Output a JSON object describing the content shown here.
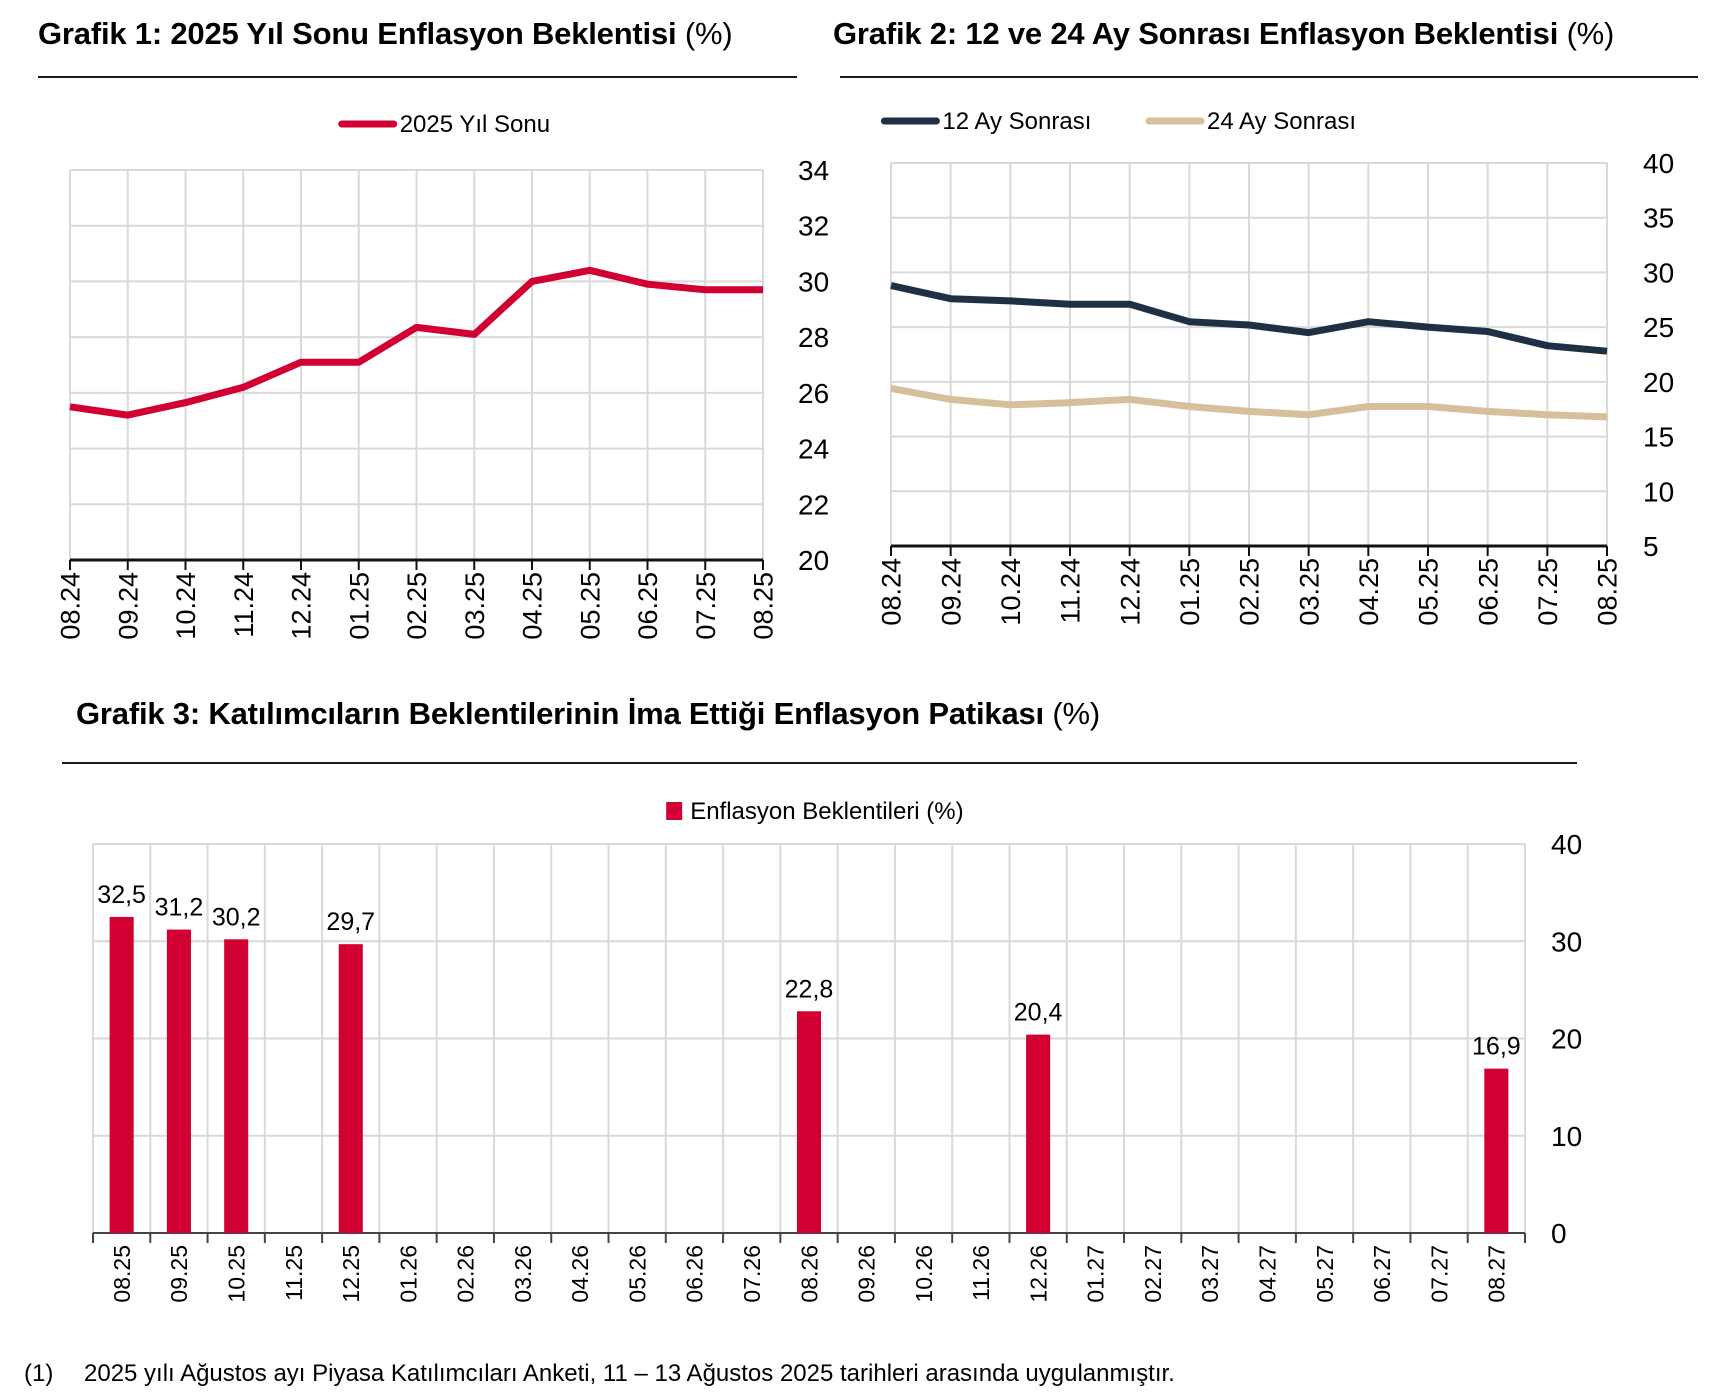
{
  "chart_data": [
    {
      "type": "line",
      "title": "Grafik 1: 2025 Yıl Sonu Enflasyon Beklentisi",
      "title_unit": "(%)",
      "xlabel": "",
      "ylabel": "",
      "categories": [
        "08.24",
        "09.24",
        "10.24",
        "11.24",
        "12.24",
        "01.25",
        "02.25",
        "03.25",
        "04.25",
        "05.25",
        "06.25",
        "07.25",
        "08.25"
      ],
      "series": [
        {
          "name": "2025 Yıl Sonu",
          "color": "#D20032",
          "values": [
            25.5,
            25.2,
            25.65,
            26.2,
            27.1,
            27.1,
            28.35,
            28.1,
            30.0,
            30.4,
            29.9,
            29.7,
            29.7
          ]
        }
      ],
      "ylim": [
        20,
        34
      ],
      "yticks": [
        20,
        22,
        24,
        26,
        28,
        30,
        32,
        34
      ],
      "y_axis_side": "right",
      "grid": true,
      "legend_position": "top-center"
    },
    {
      "type": "line",
      "title": "Grafik 2: 12 ve 24 Ay Sonrası Enflasyon Beklentisi",
      "title_unit": "(%)",
      "xlabel": "",
      "ylabel": "",
      "categories": [
        "08.24",
        "09.24",
        "10.24",
        "11.24",
        "12.24",
        "01.25",
        "02.25",
        "03.25",
        "04.25",
        "05.25",
        "06.25",
        "07.25",
        "08.25"
      ],
      "series": [
        {
          "name": "12 Ay Sonrası",
          "color": "#1F3044",
          "values": [
            28.8,
            27.6,
            27.4,
            27.1,
            27.1,
            25.5,
            25.2,
            24.5,
            25.5,
            25.0,
            24.6,
            23.3,
            22.8
          ]
        },
        {
          "name": "24 Ay Sonrası",
          "color": "#D6BF9B",
          "values": [
            19.4,
            18.4,
            17.9,
            18.1,
            18.4,
            17.75,
            17.3,
            17.0,
            17.75,
            17.75,
            17.3,
            17.0,
            16.8
          ]
        }
      ],
      "ylim": [
        5,
        40
      ],
      "yticks": [
        5,
        10,
        15,
        20,
        25,
        30,
        35,
        40
      ],
      "y_axis_side": "right",
      "grid": true,
      "legend_position": "top-center"
    },
    {
      "type": "bar",
      "title": "Grafik 3: Katılımcıların Beklentilerinin İma Ettiği Enflasyon Patikası",
      "title_unit": "(%)",
      "xlabel": "",
      "ylabel": "",
      "categories": [
        "08.25",
        "09.25",
        "10.25",
        "11.25",
        "12.25",
        "01.26",
        "02.26",
        "03.26",
        "04.26",
        "05.26",
        "06.26",
        "07.26",
        "08.26",
        "09.26",
        "10.26",
        "11.26",
        "12.26",
        "01.27",
        "02.27",
        "03.27",
        "04.27",
        "05.27",
        "06.27",
        "07.27",
        "08.27"
      ],
      "series": [
        {
          "name": "Enflasyon Beklentileri (%)",
          "color": "#D20032",
          "values": [
            32.5,
            31.2,
            30.2,
            null,
            29.7,
            null,
            null,
            null,
            null,
            null,
            null,
            null,
            22.8,
            null,
            null,
            null,
            20.4,
            null,
            null,
            null,
            null,
            null,
            null,
            null,
            16.9
          ]
        }
      ],
      "data_labels": [
        "32,5",
        "31,2",
        "30,2",
        "",
        "29,7",
        "",
        "",
        "",
        "",
        "",
        "",
        "",
        "22,8",
        "",
        "",
        "",
        "20,4",
        "",
        "",
        "",
        "",
        "",
        "",
        "",
        "16,9"
      ],
      "ylim": [
        0,
        40
      ],
      "yticks": [
        0,
        10,
        20,
        30,
        40
      ],
      "y_axis_side": "right",
      "grid": true,
      "legend_position": "top-center"
    }
  ],
  "footnote": {
    "number": "(1)",
    "text": "2025 yılı Ağustos ayı Piyasa Katılımcıları Anketi, 11 – 13 Ağustos 2025 tarihleri arasında uygulanmıştır."
  }
}
